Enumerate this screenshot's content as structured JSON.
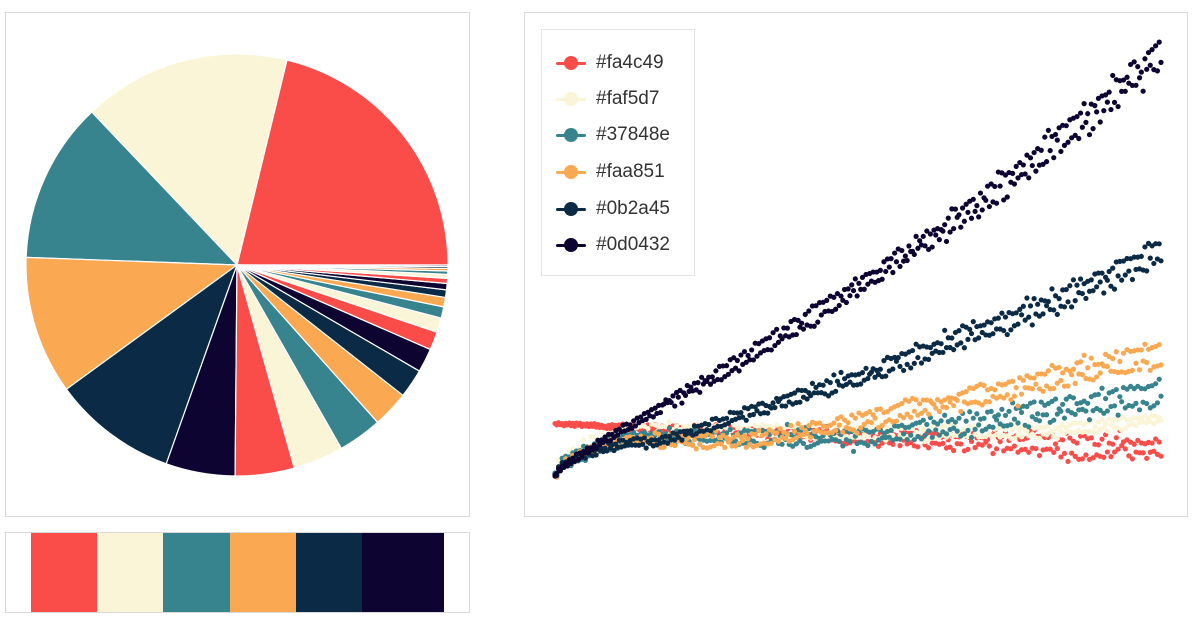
{
  "palette": [
    "#fa4c49",
    "#faf5d7",
    "#37848e",
    "#faa851",
    "#0b2a45",
    "#0d0432"
  ],
  "chart_data": [
    {
      "type": "pie",
      "title": "",
      "slice_colors": [
        "#fa4c49",
        "#faf5d7",
        "#37848e",
        "#faa851",
        "#0b2a45",
        "#0d0432",
        "#fa4c49",
        "#faf5d7",
        "#37848e",
        "#faa851",
        "#0b2a45",
        "#0d0432",
        "#fa4c49",
        "#faf5d7",
        "#37848e",
        "#faa851",
        "#0b2a45",
        "#0d0432",
        "#fa4c49",
        "#faf5d7",
        "#37848e",
        "#faa851",
        "#0b2a45",
        "#0d0432"
      ],
      "values": [
        22.0,
        16.5,
        12.8,
        11.0,
        9.9,
        5.5,
        4.7,
        4.0,
        3.5,
        2.9,
        2.3,
        1.9,
        1.45,
        1.15,
        0.9,
        0.75,
        0.6,
        0.5,
        0.4,
        0.32,
        0.26,
        0.2,
        0.15,
        0.12
      ]
    },
    {
      "type": "scatter",
      "title": "",
      "xlabel": "",
      "ylabel": "",
      "grid": false,
      "legend_position": "top-left",
      "x_range": [
        0,
        100
      ],
      "y_range": [
        0,
        100
      ],
      "points_per_series": 340,
      "series": [
        {
          "name": "#fa4c49",
          "color": "#fa4c49",
          "start": 52,
          "end": 33,
          "spread_start": 0.5,
          "spread_end": 4.5
        },
        {
          "name": "#faf5d7",
          "color": "#faf5d7",
          "start": 46,
          "end": 56,
          "spread_start": 3.0,
          "spread_end": 2.0
        },
        {
          "name": "#37848e",
          "color": "#37848e",
          "start": 42,
          "end": 76,
          "spread_start": 2.0,
          "spread_end": 4.0
        },
        {
          "name": "#faa851",
          "color": "#faa851",
          "start": 40,
          "end": 106,
          "spread_start": 1.5,
          "spread_end": 4.5
        },
        {
          "name": "#0b2a45",
          "color": "#0b2a45",
          "start": 38,
          "end": 180,
          "spread_start": 1.0,
          "spread_end": 4.5
        },
        {
          "name": "#0d0432",
          "color": "#0d0432",
          "start": 36,
          "end": 330,
          "spread_start": 1.0,
          "spread_end": 5.5
        }
      ]
    }
  ]
}
